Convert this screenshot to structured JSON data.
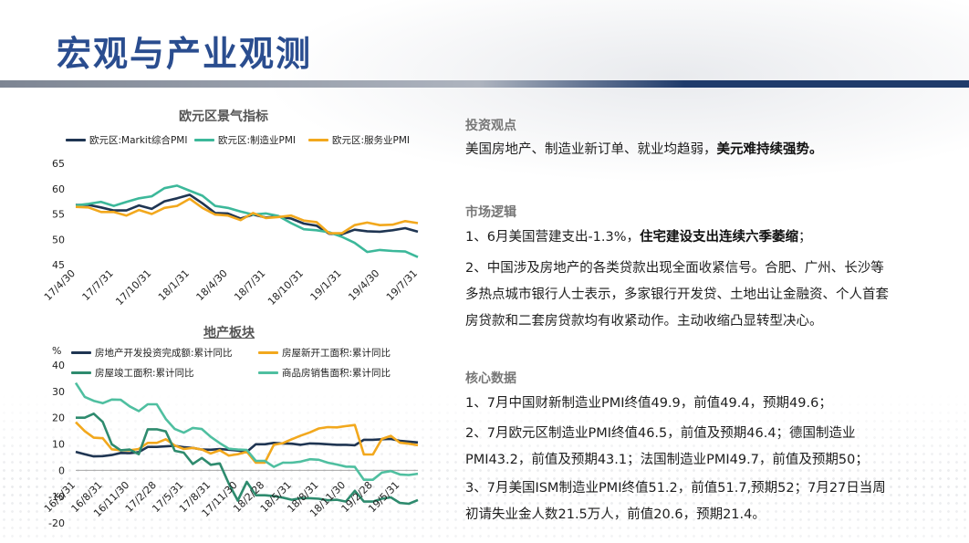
{
  "page": {
    "title": "宏观与产业观测"
  },
  "chart_data": [
    {
      "type": "line",
      "title": "欧元区景气指标",
      "x": [
        "17/4/30",
        "17/5/31",
        "17/6/30",
        "17/7/31",
        "17/8/31",
        "17/9/30",
        "17/10/31",
        "17/11/30",
        "17/12/31",
        "18/1/31",
        "18/2/28",
        "18/3/31",
        "18/4/30",
        "18/5/31",
        "18/6/30",
        "18/7/31",
        "18/8/31",
        "18/9/30",
        "18/10/31",
        "18/11/30",
        "18/12/31",
        "19/1/31",
        "19/2/28",
        "19/3/31",
        "19/4/30",
        "19/5/31",
        "19/6/30",
        "19/7/31"
      ],
      "xticks": [
        "17/4/30",
        "17/7/31",
        "17/10/31",
        "18/1/31",
        "18/4/30",
        "18/7/31",
        "18/10/31",
        "19/1/31",
        "19/4/30",
        "19/7/31"
      ],
      "ylim": [
        45,
        65
      ],
      "yticks": [
        45,
        50,
        55,
        60,
        65
      ],
      "series": [
        {
          "name": "欧元区:Markit综合PMI",
          "color": "#1f3552",
          "values": [
            56.8,
            56.8,
            56.3,
            55.7,
            55.7,
            56.7,
            56.0,
            57.5,
            58.1,
            58.8,
            57.1,
            55.2,
            55.1,
            54.1,
            54.9,
            54.3,
            54.5,
            54.1,
            53.1,
            52.7,
            51.1,
            51.0,
            51.9,
            51.6,
            51.5,
            51.8,
            52.2,
            51.5
          ]
        },
        {
          "name": "欧元区:制造业PMI",
          "color": "#3cb89a",
          "values": [
            56.7,
            57.0,
            57.4,
            56.6,
            57.4,
            58.1,
            58.5,
            60.1,
            60.6,
            59.6,
            58.6,
            56.6,
            56.2,
            55.5,
            54.9,
            55.1,
            54.6,
            53.2,
            52.0,
            51.8,
            51.4,
            50.5,
            49.3,
            47.5,
            47.9,
            47.7,
            47.6,
            46.5
          ]
        },
        {
          "name": "欧元区:服务业PMI",
          "color": "#f2a81d",
          "values": [
            56.4,
            56.3,
            55.4,
            55.4,
            54.7,
            55.8,
            55.0,
            56.2,
            56.6,
            58.0,
            56.2,
            54.9,
            54.7,
            53.8,
            55.2,
            54.2,
            54.4,
            54.7,
            53.7,
            53.4,
            51.2,
            51.2,
            52.8,
            53.3,
            52.8,
            52.9,
            53.6,
            53.2
          ]
        }
      ]
    },
    {
      "type": "line",
      "title": "地产板块",
      "ylabel": "%",
      "x": [
        "16/5/31",
        "16/6/30",
        "16/7/31",
        "16/8/31",
        "16/9/30",
        "16/10/31",
        "16/11/30",
        "16/12/31",
        "17/1/31",
        "17/2/28",
        "17/3/31",
        "17/4/30",
        "17/5/31",
        "17/6/30",
        "17/7/31",
        "17/8/31",
        "17/9/30",
        "17/10/31",
        "17/11/30",
        "17/12/31",
        "18/1/31",
        "18/2/28",
        "18/3/31",
        "18/4/30",
        "18/5/31",
        "18/6/30",
        "18/7/31",
        "18/8/31",
        "18/9/30",
        "18/10/31",
        "18/11/30",
        "18/12/31",
        "19/1/31",
        "19/2/28",
        "19/3/31",
        "19/4/30",
        "19/5/31",
        "19/6/30",
        "19/7/31"
      ],
      "xticks": [
        "16/5/31",
        "16/8/31",
        "16/11/30",
        "17/2/28",
        "17/5/31",
        "17/8/31",
        "17/11/30",
        "18/2/28",
        "18/5/31",
        "18/8/31",
        "18/11/30",
        "19/2/28",
        "19/5/31"
      ],
      "ylim": [
        -20,
        40
      ],
      "yticks": [
        -20,
        -10,
        0,
        10,
        20,
        30,
        40
      ],
      "series": [
        {
          "name": "房地产开发投资完成额:累计同比",
          "color": "#1f3552",
          "values": [
            7.0,
            6.1,
            5.3,
            5.4,
            5.8,
            6.6,
            6.5,
            6.9,
            8.9,
            8.9,
            9.1,
            9.3,
            8.8,
            8.5,
            7.9,
            7.8,
            8.1,
            7.8,
            7.5,
            7.0,
            9.9,
            9.9,
            10.4,
            10.2,
            10.1,
            9.7,
            10.2,
            10.1,
            9.9,
            9.7,
            9.7,
            9.5,
            11.6,
            11.6,
            11.8,
            11.9,
            11.2,
            10.9,
            10.6
          ]
        },
        {
          "name": "房屋新开工面积:累计同比",
          "color": "#f2a81d",
          "values": [
            18.3,
            14.9,
            12.4,
            12.2,
            8.0,
            7.6,
            7.6,
            8.1,
            10.4,
            10.4,
            11.8,
            9.4,
            8.1,
            8.5,
            7.9,
            6.4,
            7.6,
            5.6,
            6.1,
            7.0,
            2.9,
            2.9,
            9.7,
            10.3,
            11.8,
            13.2,
            14.4,
            15.9,
            16.4,
            16.3,
            16.8,
            17.2,
            6.0,
            6.0,
            11.9,
            13.1,
            10.5,
            10.1,
            9.5
          ]
        },
        {
          "name": "房屋竣工面积:累计同比",
          "color": "#2e8b6e",
          "values": [
            20.0,
            20.0,
            21.5,
            18.4,
            9.9,
            7.6,
            7.9,
            6.1,
            15.6,
            15.6,
            14.8,
            7.4,
            6.7,
            2.4,
            4.7,
            2.1,
            2.6,
            -5.1,
            -11.5,
            -4.4,
            -9.5,
            -9.5,
            -9.8,
            -10.4,
            -11.2,
            -10.6,
            -10.6,
            -10.8,
            -11.4,
            -11.2,
            -11.9,
            -7.8,
            -11.9,
            -11.9,
            -10.8,
            -10.3,
            -12.4,
            -12.7,
            -11.3
          ]
        },
        {
          "name": "商品房销售面积:累计同比",
          "color": "#4fbfa0",
          "values": [
            33.2,
            27.9,
            26.4,
            25.5,
            26.9,
            26.8,
            24.3,
            22.5,
            25.1,
            25.1,
            19.5,
            15.7,
            14.3,
            16.1,
            15.7,
            12.7,
            10.3,
            8.2,
            7.9,
            7.7,
            3.6,
            3.6,
            1.3,
            2.9,
            2.9,
            3.3,
            4.2,
            4.0,
            2.9,
            2.2,
            1.4,
            1.3,
            -3.6,
            -3.6,
            -0.9,
            -0.3,
            -1.6,
            -1.8,
            -1.3
          ]
        }
      ]
    }
  ],
  "right": {
    "s1": {
      "head": "投资观点",
      "text": "美国房地产、制造业新订单、就业均趋弱，",
      "bold": "美元难持续强势。"
    },
    "s2": {
      "head": "市场逻辑",
      "p1a": "1、6月美国营建支出-1.3%，",
      "p1b": "住宅建设支出连续六季萎缩",
      "p1c": "；",
      "p2": "2、中国涉及房地产的各类贷款出现全面收紧信号。合肥、广州、长沙等多热点城市银行人士表示，多家银行开发贷、土地出让金融资、个人首套房贷款和二套房贷款均有收紧动作。主动收缩凸显转型决心。"
    },
    "s3": {
      "head": "核心数据",
      "p1": "1、7月中国财新制造业PMI终值49.9，前值49.4，预期49.6；",
      "p2": "2、7月欧元区制造业PMI终值46.5，前值及预期46.4；德国制造业PMI43.2，前值及预期43.1；法国制造业PMI49.7，前值及预期50；",
      "p3": "3、7月美国ISM制造业PMI终值51.2，前值51.7,预期52；7月27日当周初请失业金人数21.5万人，前值20.6，预期21.4。"
    }
  }
}
